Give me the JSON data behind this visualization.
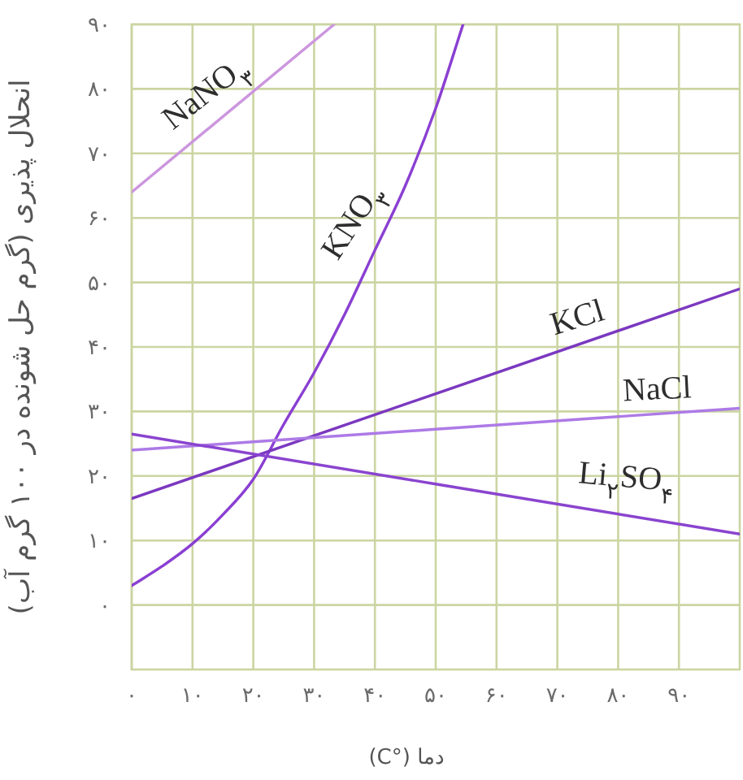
{
  "chart_data": {
    "type": "line",
    "xlabel": "دما (°C)",
    "ylabel": "انحلال پذیری (گرم حل شونده در ۱۰۰ گرم آب)",
    "xlim": [
      0,
      100
    ],
    "ylim": [
      -10,
      90
    ],
    "xticks": [
      {
        "value": 0,
        "label": "۰"
      },
      {
        "value": 10,
        "label": "۱۰"
      },
      {
        "value": 20,
        "label": "۲۰"
      },
      {
        "value": 30,
        "label": "۳۰"
      },
      {
        "value": 40,
        "label": "۴۰"
      },
      {
        "value": 50,
        "label": "۵۰"
      },
      {
        "value": 60,
        "label": "۶۰"
      },
      {
        "value": 70,
        "label": "۷۰"
      },
      {
        "value": 80,
        "label": "۸۰"
      },
      {
        "value": 90,
        "label": "۹۰"
      }
    ],
    "yticks": [
      {
        "value": 0,
        "label": "۰"
      },
      {
        "value": 10,
        "label": "۱۰"
      },
      {
        "value": 20,
        "label": "۲۰"
      },
      {
        "value": 30,
        "label": "۳۰"
      },
      {
        "value": 40,
        "label": "۴۰"
      },
      {
        "value": 50,
        "label": "۵۰"
      },
      {
        "value": 60,
        "label": "۶۰"
      },
      {
        "value": 70,
        "label": "۷۰"
      },
      {
        "value": 80,
        "label": "۸۰"
      },
      {
        "value": 90,
        "label": "۹۰"
      }
    ],
    "grid": true,
    "series": [
      {
        "name": "NaNO$_{۳}$",
        "color": "#cc96de",
        "x": [
          0,
          33.3
        ],
        "values": [
          64,
          90
        ]
      },
      {
        "name": "KNO$_{۳}$",
        "color": "#8a3fd2",
        "x": [
          0,
          5,
          10,
          15,
          20,
          25,
          30,
          35,
          40,
          45,
          50,
          54.5
        ],
        "values": [
          3,
          6,
          9.5,
          14,
          19.5,
          28,
          36,
          45,
          55,
          65,
          77,
          90
        ]
      },
      {
        "name": "KCl",
        "color": "#7b38c0",
        "x": [
          0,
          100
        ],
        "values": [
          16.5,
          49
        ]
      },
      {
        "name": "NaCl",
        "color": "#ad7ae6",
        "x": [
          0,
          100
        ],
        "values": [
          24,
          30.5
        ]
      },
      {
        "name": "Li$_{۲}$SO$_{۴}$",
        "color": "#8a44cf",
        "x": [
          0,
          100
        ],
        "values": [
          26.5,
          11
        ]
      }
    ]
  }
}
